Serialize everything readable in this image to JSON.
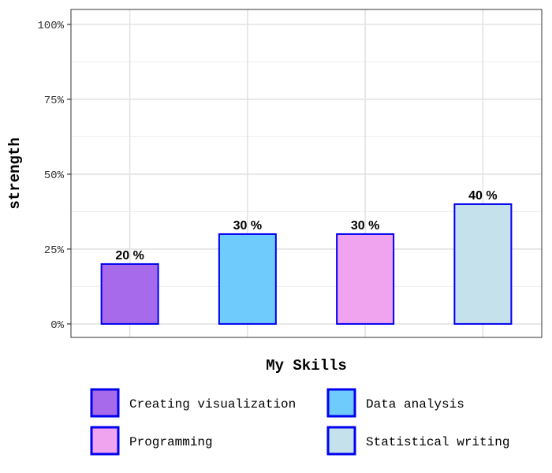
{
  "chart_data": {
    "type": "bar",
    "title": "",
    "xlabel": "My Skills",
    "ylabel": "strength",
    "categories": [
      "Creating visualization",
      "Data analysis",
      "Programming",
      "Statistical writing"
    ],
    "values": [
      20,
      30,
      30,
      40
    ],
    "data_labels": [
      "20 %",
      "30 %",
      "30 %",
      "40 %"
    ],
    "colors": [
      "#a66aea",
      "#6fcbfb",
      "#f0a4f0",
      "#c5e1ec"
    ],
    "border_color": "#0000ee",
    "ylim": [
      -4.5,
      105
    ],
    "y_ticks": [
      0,
      25,
      50,
      75,
      100
    ],
    "y_tick_labels": [
      "0%",
      "25%",
      "50%",
      "75%",
      "100%"
    ],
    "grid": true,
    "legend": {
      "position": "bottom",
      "columns": 2,
      "entries": [
        "Creating visualization",
        "Data analysis",
        "Programming",
        "Statistical writing"
      ]
    }
  }
}
